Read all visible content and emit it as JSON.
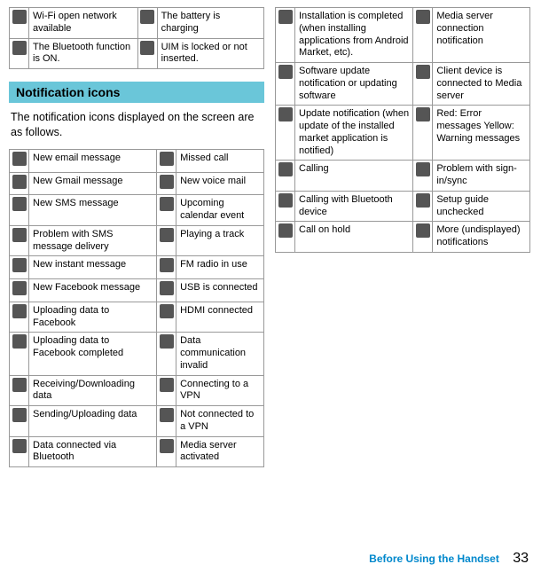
{
  "colors": {
    "heading_bg": "#6ac6d9",
    "border": "#999999",
    "link": "#0088cc",
    "icon_fill": "#555555"
  },
  "status_icons_tail": [
    {
      "left": "Wi-Fi open network available",
      "right": "The battery is charging"
    },
    {
      "left": "The Bluetooth function is ON.",
      "right": "UIM is locked or not inserted."
    }
  ],
  "heading": "Notification icons",
  "intro": "The notification icons displayed on the screen are as follows.",
  "notif_icons_left": [
    {
      "left": "New email message",
      "right": "Missed call"
    },
    {
      "left": "New Gmail message",
      "right": "New voice mail"
    },
    {
      "left": "New SMS message",
      "right": "Upcoming calendar event"
    },
    {
      "left": "Problem with SMS message delivery",
      "right": "Playing a track"
    },
    {
      "left": "New instant message",
      "right": "FM radio in use"
    },
    {
      "left": "New Facebook message",
      "right": "USB is connected"
    },
    {
      "left": "Uploading data to Facebook",
      "right": "HDMI connected"
    },
    {
      "left": "Uploading data to Facebook completed",
      "right": "Data communication invalid"
    },
    {
      "left": "Receiving/Downloading data",
      "right": "Connecting to a VPN"
    },
    {
      "left": "Sending/Uploading data",
      "right": "Not connected to a VPN"
    },
    {
      "left": "Data connected via Bluetooth",
      "right": "Media server activated"
    }
  ],
  "notif_icons_right": [
    {
      "left": "Installation is completed (when installing applications from Android Market, etc).",
      "right": "Media server connection notification"
    },
    {
      "left": "Software update notification or updating software",
      "right": "Client device is connected to Media server"
    },
    {
      "left": "Update notification (when update of the installed market application is notified)",
      "right": "Red: Error messages\nYellow: Warning messages"
    },
    {
      "left": "Calling",
      "right": "Problem with sign-in/sync"
    },
    {
      "left": "Calling with Bluetooth device",
      "right": "Setup guide unchecked"
    },
    {
      "left": "Call on hold",
      "right": "More (undisplayed) notifications"
    }
  ],
  "footer": {
    "link": "Before Using the Handset",
    "page": "33"
  }
}
